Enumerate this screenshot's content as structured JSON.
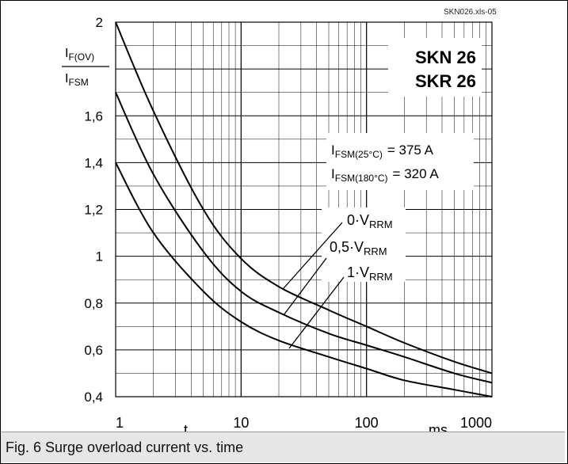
{
  "file_tag": "SKN026.xls-05",
  "caption": "Fig. 6 Surge overload current vs. time",
  "chart_data": {
    "type": "line",
    "title": "",
    "x_scale": "log",
    "xlim": [
      1,
      1000
    ],
    "ylim": [
      0.4,
      2.0
    ],
    "x_ticks": [
      "1",
      "10",
      "100",
      "1000"
    ],
    "y_ticks": [
      "0,4",
      "0,6",
      "0,8",
      "1",
      "1,2",
      "1,4",
      "1,6",
      "2"
    ],
    "xlabel": "t",
    "x_unit": "ms",
    "ylabel_num_main": "I",
    "ylabel_num_sub": "F(OV)",
    "ylabel_den_main": "I",
    "ylabel_den_sub": "FSM",
    "device_line1": "SKN 26",
    "device_line2": "SKR 26",
    "ifsm_25_main": "I",
    "ifsm_25_sub": "FSM(25°C)",
    "ifsm_25_value": "= 375 A",
    "ifsm_180_main": "I",
    "ifsm_180_sub": "FSM(180°C)",
    "ifsm_180_value": "= 320 A",
    "grid": true,
    "series": [
      {
        "name_main": "0·V",
        "name_sub": "RRM",
        "x": [
          1,
          2,
          5,
          10,
          20,
          50,
          100,
          200,
          500,
          1000
        ],
        "y": [
          2.0,
          1.62,
          1.2,
          0.99,
          0.87,
          0.77,
          0.7,
          0.63,
          0.55,
          0.5
        ]
      },
      {
        "name_main": "0,5·V",
        "name_sub": "RRM",
        "x": [
          1,
          2,
          5,
          10,
          20,
          50,
          100,
          200,
          500,
          1000
        ],
        "y": [
          1.7,
          1.35,
          1.02,
          0.85,
          0.76,
          0.67,
          0.62,
          0.57,
          0.5,
          0.46
        ]
      },
      {
        "name_main": "1·V",
        "name_sub": "RRM",
        "x": [
          1,
          2,
          5,
          10,
          20,
          50,
          100,
          200,
          500,
          1000
        ],
        "y": [
          1.4,
          1.1,
          0.85,
          0.72,
          0.64,
          0.57,
          0.52,
          0.47,
          0.43,
          0.4
        ]
      }
    ]
  }
}
